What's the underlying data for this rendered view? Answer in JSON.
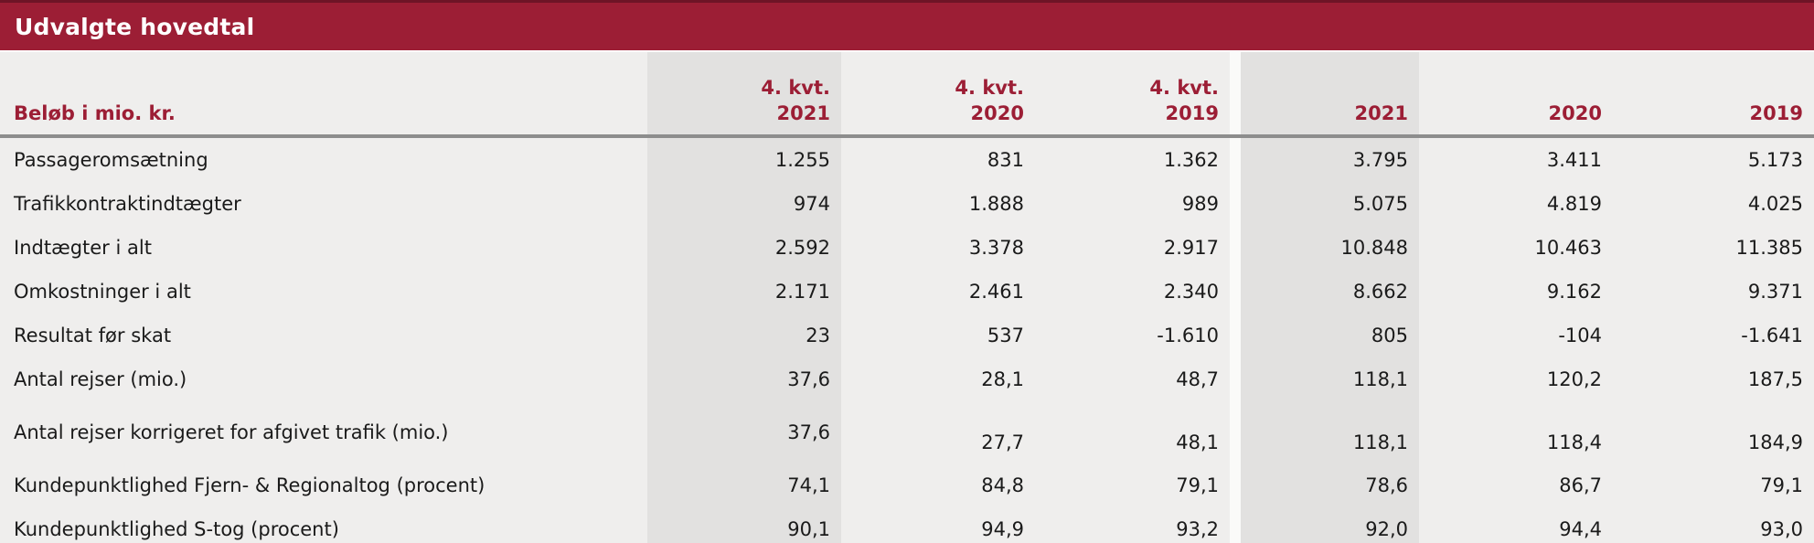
{
  "title": "Udvalgte hovedtal",
  "colors": {
    "brand_red": "#9c1e35",
    "top_line_dark_red": "#6e1426",
    "table_background": "#efeeed",
    "shaded_column": "#e2e1e0",
    "rule_gray": "#8d8d8d",
    "text_black": "#1a1a1a"
  },
  "table": {
    "label_header": "Beløb i mio. kr.",
    "columns": [
      {
        "line1": "4. kvt.",
        "line2": "2021",
        "shaded": true
      },
      {
        "line1": "4. kvt.",
        "line2": "2020",
        "shaded": false
      },
      {
        "line1": "4. kvt.",
        "line2": "2019",
        "shaded": false
      },
      {
        "line1": "",
        "line2": "2021",
        "shaded": true
      },
      {
        "line1": "",
        "line2": "2020",
        "shaded": false
      },
      {
        "line1": "",
        "line2": "2019",
        "shaded": false
      }
    ],
    "rows": [
      {
        "label": "Passageromsætning",
        "values": [
          "1.255",
          "831",
          "1.362",
          "3.795",
          "3.411",
          "5.173"
        ],
        "tall": false
      },
      {
        "label": "Trafikkontraktindtægter",
        "values": [
          "974",
          "1.888",
          "989",
          "5.075",
          "4.819",
          "4.025"
        ],
        "tall": false
      },
      {
        "label": "Indtægter i alt",
        "values": [
          "2.592",
          "3.378",
          "2.917",
          "10.848",
          "10.463",
          "11.385"
        ],
        "tall": false
      },
      {
        "label": "Omkostninger i alt",
        "values": [
          "2.171",
          "2.461",
          "2.340",
          "8.662",
          "9.162",
          "9.371"
        ],
        "tall": false
      },
      {
        "label": "Resultat før skat",
        "values": [
          "23",
          "537",
          "-1.610",
          "805",
          "-104",
          "-1.641"
        ],
        "tall": false
      },
      {
        "label": "Antal rejser (mio.)",
        "values": [
          "37,6",
          "28,1",
          "48,7",
          "118,1",
          "120,2",
          "187,5"
        ],
        "tall": false
      },
      {
        "label": "Antal rejser korrigeret for afgivet trafik (mio.)",
        "values": [
          "37,6",
          "27,7",
          "48,1",
          "118,1",
          "118,4",
          "184,9"
        ],
        "tall": true
      },
      {
        "label": "Kundepunktlighed Fjern- & Regionaltog (procent)",
        "values": [
          "74,1",
          "84,8",
          "79,1",
          "78,6",
          "86,7",
          "79,1"
        ],
        "tall": false
      },
      {
        "label": "Kundepunktlighed S-tog (procent)",
        "values": [
          "90,1",
          "94,9",
          "93,2",
          "92,0",
          "94,4",
          "93,0"
        ],
        "tall": false
      }
    ]
  }
}
